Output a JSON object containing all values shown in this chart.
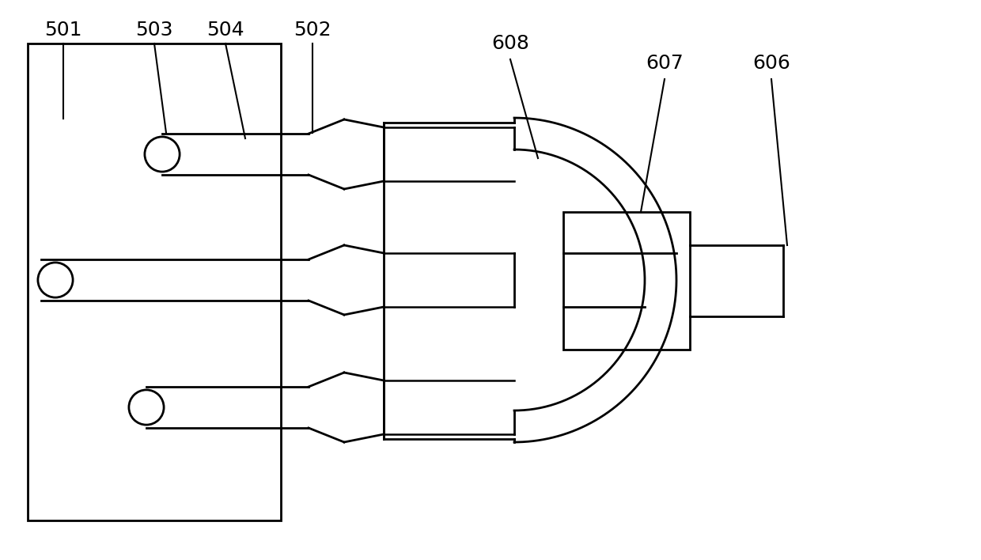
{
  "bg_color": "#ffffff",
  "line_color": "#000000",
  "lw": 2.0,
  "fig_width": 12.4,
  "fig_height": 7.08,
  "label_fontsize": 18
}
